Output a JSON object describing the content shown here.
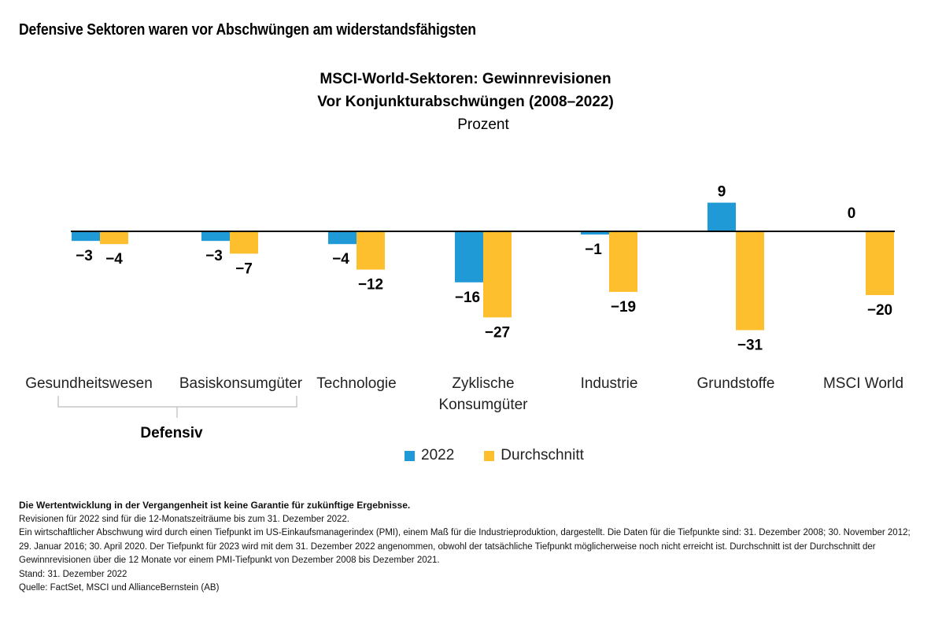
{
  "headline": "Defensive Sektoren waren vor Abschwüngen am widerstandsfähigsten",
  "chart_data": {
    "type": "bar",
    "title": "MSCI-World-Sektoren: Gewinnrevisionen",
    "subtitle": "Vor Konjunkturabschwüngen (2008–2022)",
    "unit": "Prozent",
    "xlabel": "",
    "ylabel": "",
    "ylim": [
      -35,
      12
    ],
    "grid": false,
    "legend_position": "bottom-center",
    "categories": [
      "Gesundheitswesen",
      "Basiskonsumgüter",
      "Technologie",
      "Zyklische Konsumgüter",
      "Industrie",
      "Grundstoffe",
      "MSCI World"
    ],
    "category_lines": [
      [
        "Gesundheitswesen"
      ],
      [
        "Basiskonsumgüter"
      ],
      [
        "Technologie"
      ],
      [
        "Zyklische",
        "Konsumgüter"
      ],
      [
        "Industrie"
      ],
      [
        "Grundstoffe"
      ],
      [
        "MSCI World"
      ]
    ],
    "series": [
      {
        "name": "2022",
        "color": "#1f9ad6",
        "values": [
          -3,
          -3,
          -4,
          -16,
          -1,
          9,
          0
        ]
      },
      {
        "name": "Durchschnitt",
        "color": "#fdbf2d",
        "values": [
          -4,
          -7,
          -12,
          -27,
          -19,
          -31,
          -20
        ]
      }
    ],
    "group_annotation": {
      "label": "Defensiv",
      "categories": [
        "Gesundheitswesen",
        "Basiskonsumgüter"
      ]
    }
  },
  "notes": {
    "disclaimer": "Die Wertentwicklung in der Vergangenheit ist keine Garantie für zukünftige Ergebnisse.",
    "lines": [
      "Revisionen für 2022 sind für die 12-Monatszeiträume bis zum 31. Dezember 2022.",
      "Ein wirtschaftlicher Abschwung wird durch einen Tiefpunkt im US-Einkaufsmanagerindex (PMI), einem Maß für die Industrieproduktion, dargestellt. Die Daten für die Tiefpunkte sind: 31. Dezember 2008; 30. November 2012; 29. Januar 2016; 30. April 2020. Der Tiefpunkt für 2023 wird mit dem 31. Dezember 2022 angenommen, obwohl der tatsächliche Tiefpunkt möglicherweise noch nicht erreicht ist. Durchschnitt ist der Durchschnitt der Gewinnrevisionen über die 12 Monate vor einem PMI-Tiefpunkt von Dezember 2008 bis Dezember 2021.",
      "Stand: 31. Dezember 2022",
      "Quelle: FactSet, MSCI und AllianceBernstein (AB)"
    ]
  }
}
